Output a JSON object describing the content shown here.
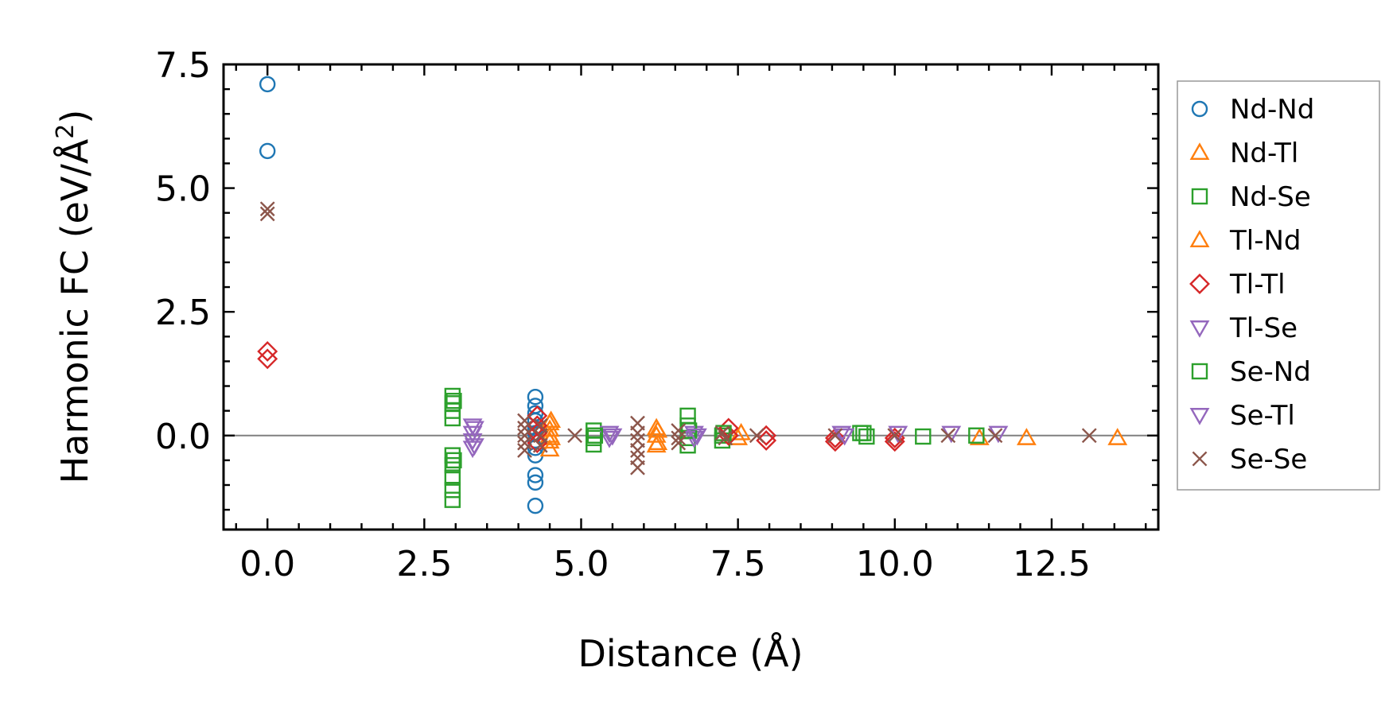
{
  "chart_data": {
    "type": "scatter",
    "xlabel": "Distance (Å)",
    "ylabel_prefix": "Harmonic FC (eV/Å",
    "ylabel_sup": "2",
    "ylabel_suffix": ")",
    "xlim": [
      -0.7,
      14.2
    ],
    "ylim": [
      -1.9,
      7.5
    ],
    "xticks": [
      0.0,
      2.5,
      5.0,
      7.5,
      10.0,
      12.5
    ],
    "xtick_labels": [
      "0.0",
      "2.5",
      "5.0",
      "7.5",
      "10.0",
      "12.5"
    ],
    "yticks": [
      0.0,
      2.5,
      5.0,
      7.5
    ],
    "ytick_labels": [
      "0.0",
      "2.5",
      "5.0",
      "7.5"
    ],
    "grid": false,
    "zero_line": true,
    "legend_position": "outside-right",
    "series": [
      {
        "name": "Nd-Nd",
        "color": "#1f77b4",
        "marker": "circle",
        "points": [
          [
            0,
            7.1
          ],
          [
            0,
            5.75
          ],
          [
            4.27,
            0.78
          ],
          [
            4.27,
            0.6
          ],
          [
            4.27,
            0.45
          ],
          [
            4.27,
            0.3
          ],
          [
            4.27,
            0.15
          ],
          [
            4.27,
            0.05
          ],
          [
            4.27,
            -0.1
          ],
          [
            4.27,
            -0.25
          ],
          [
            4.27,
            -0.4
          ],
          [
            4.27,
            -0.8
          ],
          [
            4.27,
            -0.95
          ],
          [
            4.27,
            -1.42
          ]
        ]
      },
      {
        "name": "Nd-Tl",
        "color": "#ff7f0e",
        "marker": "triangle-up",
        "points": [
          [
            4.5,
            0.25
          ],
          [
            4.5,
            0.12
          ],
          [
            4.5,
            0.0
          ],
          [
            4.5,
            -0.12
          ],
          [
            4.5,
            -0.28
          ],
          [
            6.2,
            0.15
          ],
          [
            6.2,
            0.0
          ],
          [
            6.2,
            -0.2
          ],
          [
            7.5,
            -0.05
          ],
          [
            11.35,
            -0.05
          ],
          [
            12.1,
            -0.05
          ],
          [
            13.55,
            -0.05
          ]
        ]
      },
      {
        "name": "Nd-Se",
        "color": "#2ca02c",
        "marker": "square",
        "points": [
          [
            2.95,
            0.8
          ],
          [
            2.95,
            0.65
          ],
          [
            2.95,
            0.5
          ],
          [
            2.95,
            0.35
          ],
          [
            2.95,
            -0.4
          ],
          [
            2.95,
            -0.6
          ],
          [
            2.95,
            -0.85
          ],
          [
            2.95,
            -1.1
          ],
          [
            2.95,
            -1.3
          ],
          [
            5.2,
            0.1
          ],
          [
            5.2,
            -0.05
          ],
          [
            5.2,
            -0.18
          ],
          [
            6.7,
            0.4
          ],
          [
            6.7,
            0.2
          ],
          [
            6.7,
            -0.05
          ],
          [
            6.7,
            -0.2
          ],
          [
            7.25,
            0.0
          ],
          [
            7.25,
            -0.1
          ],
          [
            9.45,
            0.05
          ],
          [
            9.55,
            -0.02
          ],
          [
            10.45,
            -0.02
          ],
          [
            11.3,
            0.0
          ]
        ]
      },
      {
        "name": "Tl-Nd",
        "color": "#ff7f0e",
        "marker": "triangle-up",
        "points": [
          [
            4.52,
            0.3
          ],
          [
            4.52,
            -0.05
          ],
          [
            6.22,
            0.1
          ],
          [
            6.22,
            -0.15
          ],
          [
            7.55,
            0.05
          ]
        ]
      },
      {
        "name": "Tl-Tl",
        "color": "#d62728",
        "marker": "diamond",
        "points": [
          [
            0,
            1.7
          ],
          [
            0,
            1.55
          ],
          [
            4.3,
            0.4
          ],
          [
            4.3,
            0.2
          ],
          [
            4.3,
            0.05
          ],
          [
            4.3,
            -0.15
          ],
          [
            7.35,
            0.15
          ],
          [
            7.35,
            0.0
          ],
          [
            7.95,
            0.0
          ],
          [
            7.95,
            -0.1
          ],
          [
            9.05,
            -0.05
          ],
          [
            9.05,
            -0.12
          ],
          [
            10.0,
            -0.05
          ],
          [
            10.0,
            -0.12
          ]
        ]
      },
      {
        "name": "Tl-Se",
        "color": "#9467bd",
        "marker": "triangle-down",
        "points": [
          [
            3.27,
            0.2
          ],
          [
            3.27,
            0.05
          ],
          [
            3.27,
            -0.1
          ],
          [
            3.27,
            -0.25
          ],
          [
            5.45,
            0.05
          ],
          [
            5.45,
            -0.05
          ],
          [
            6.8,
            0.05
          ],
          [
            6.8,
            -0.05
          ],
          [
            9.15,
            0.05
          ],
          [
            10.05,
            0.05
          ],
          [
            10.9,
            0.05
          ],
          [
            11.65,
            0.05
          ]
        ]
      },
      {
        "name": "Se-Nd",
        "color": "#2ca02c",
        "marker": "square",
        "points": [
          [
            2.97,
            0.7
          ],
          [
            2.97,
            -0.5
          ],
          [
            5.22,
            0.0
          ],
          [
            6.72,
            0.1
          ],
          [
            7.27,
            0.05
          ],
          [
            9.5,
            0.05
          ]
        ]
      },
      {
        "name": "Se-Tl",
        "color": "#9467bd",
        "marker": "triangle-down",
        "points": [
          [
            3.3,
            0.15
          ],
          [
            3.3,
            -0.2
          ],
          [
            5.5,
            0.0
          ],
          [
            6.85,
            0.0
          ],
          [
            9.2,
            0.0
          ]
        ]
      },
      {
        "name": "Se-Se",
        "color": "#8c564b",
        "marker": "x",
        "points": [
          [
            0,
            4.58
          ],
          [
            0,
            4.48
          ],
          [
            4.1,
            0.3
          ],
          [
            4.1,
            0.15
          ],
          [
            4.1,
            0.0
          ],
          [
            4.1,
            -0.15
          ],
          [
            4.1,
            -0.3
          ],
          [
            4.35,
            0.2
          ],
          [
            4.35,
            0.0
          ],
          [
            4.35,
            -0.2
          ],
          [
            4.9,
            0.0
          ],
          [
            5.9,
            0.25
          ],
          [
            5.9,
            0.05
          ],
          [
            5.9,
            -0.1
          ],
          [
            5.9,
            -0.3
          ],
          [
            5.9,
            -0.45
          ],
          [
            5.9,
            -0.65
          ],
          [
            6.55,
            0.1
          ],
          [
            6.55,
            -0.05
          ],
          [
            6.55,
            -0.15
          ],
          [
            7.25,
            0.05
          ],
          [
            7.3,
            -0.05
          ],
          [
            7.8,
            0.0
          ],
          [
            9.05,
            0.0
          ],
          [
            10.0,
            0.0
          ],
          [
            10.85,
            0.0
          ],
          [
            11.6,
            0.0
          ],
          [
            13.1,
            0.0
          ]
        ]
      }
    ]
  }
}
